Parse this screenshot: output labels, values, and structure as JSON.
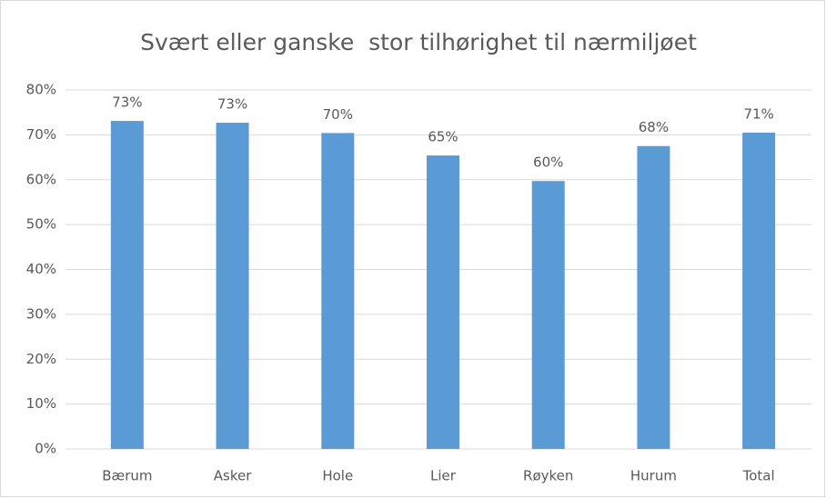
{
  "chart_data": {
    "type": "bar",
    "title": "Svært eller ganske  stor tilhørighet til nærmiljøet",
    "categories": [
      "Bærum",
      "Asker",
      "Hole",
      "Lier",
      "Røyken",
      "Hurum",
      "Total"
    ],
    "values": [
      73.1,
      72.7,
      70.4,
      65.4,
      59.7,
      67.5,
      70.5
    ],
    "value_labels": [
      "73%",
      "73%",
      "70%",
      "65%",
      "60%",
      "68%",
      "71%"
    ],
    "color": "#5b9bd5",
    "ylim": [
      0,
      80
    ],
    "yticks": [
      {
        "value": 0,
        "label": "0%"
      },
      {
        "value": 10,
        "label": "10%"
      },
      {
        "value": 20,
        "label": "20%"
      },
      {
        "value": 30,
        "label": "30%"
      },
      {
        "value": 40,
        "label": "40%"
      },
      {
        "value": 50,
        "label": "50%"
      },
      {
        "value": 60,
        "label": "60%"
      },
      {
        "value": 70,
        "label": "70%"
      },
      {
        "value": 80,
        "label": "80%"
      }
    ],
    "grid": true
  }
}
